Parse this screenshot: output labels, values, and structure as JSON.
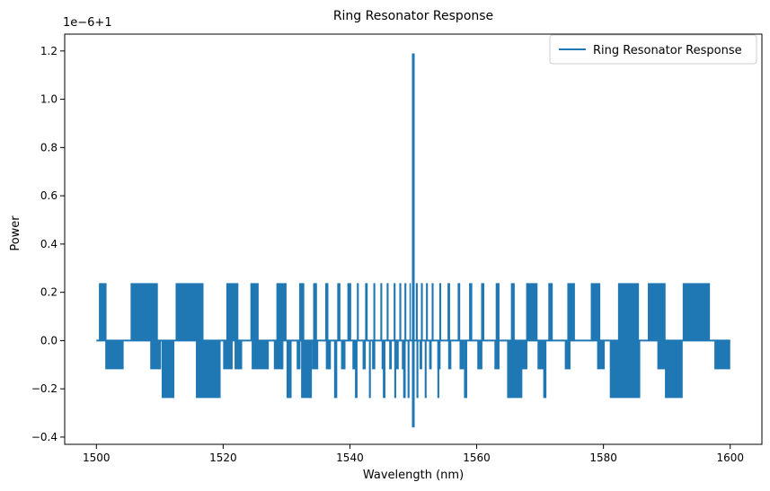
{
  "chart_data": {
    "type": "line",
    "title": "Ring Resonator Response",
    "xlabel": "Wavelength (nm)",
    "ylabel": "Power",
    "offset_label": "1e−6+1",
    "xlim": [
      1495,
      1605
    ],
    "ylim": [
      -0.43,
      1.27
    ],
    "y_scale_note": "y values shown are (Power - 1) × 1e6",
    "x_ticks": [
      1500,
      1520,
      1540,
      1560,
      1580,
      1600
    ],
    "x_tick_labels": [
      "1500",
      "1520",
      "1540",
      "1560",
      "1580",
      "1600"
    ],
    "y_ticks": [
      -0.4,
      -0.2,
      0.0,
      0.2,
      0.4,
      0.6,
      0.8,
      1.0,
      1.2
    ],
    "y_tick_labels": [
      "−0.4",
      "−0.2",
      "0.0",
      "0.2",
      "0.4",
      "0.6",
      "0.8",
      "1.0",
      "1.2"
    ],
    "grid": false,
    "legend": {
      "position": "top-right",
      "entries": [
        "Ring Resonator Response"
      ]
    },
    "series": [
      {
        "name": "Ring Resonator Response",
        "color": "#1f77b4",
        "levels": [
          -0.238,
          -0.119,
          0.0,
          0.238
        ],
        "high_bands": [
          [
            1500.4,
            1501.6
          ],
          [
            1505.4,
            1509.7
          ],
          [
            1512.5,
            1516.9
          ],
          [
            1520.5,
            1522.4
          ],
          [
            1524.3,
            1525.6
          ],
          [
            1528.4,
            1530.0
          ],
          [
            1532.0,
            1532.8
          ],
          [
            1534.2,
            1534.8
          ],
          [
            1536.1,
            1536.6
          ],
          [
            1538.0,
            1538.5
          ],
          [
            1539.6,
            1540.2
          ],
          [
            1541.1,
            1541.4
          ],
          [
            1542.4,
            1542.8
          ],
          [
            1543.7,
            1544.0
          ],
          [
            1544.8,
            1545.1
          ],
          [
            1545.8,
            1546.1
          ],
          [
            1546.9,
            1547.2
          ],
          [
            1547.8,
            1548.1
          ],
          [
            1548.6,
            1548.9
          ],
          [
            1549.4,
            1549.6
          ],
          [
            1550.4,
            1550.7
          ],
          [
            1551.2,
            1551.5
          ],
          [
            1552.0,
            1552.3
          ],
          [
            1552.9,
            1553.2
          ],
          [
            1554.1,
            1554.4
          ],
          [
            1555.4,
            1555.8
          ],
          [
            1557.0,
            1557.4
          ],
          [
            1558.8,
            1559.3
          ],
          [
            1560.7,
            1561.2
          ],
          [
            1563.0,
            1563.6
          ],
          [
            1565.4,
            1566.0
          ],
          [
            1567.8,
            1569.6
          ],
          [
            1571.3,
            1572.0
          ],
          [
            1574.3,
            1575.5
          ],
          [
            1578.0,
            1579.5
          ],
          [
            1582.3,
            1585.6
          ],
          [
            1587.0,
            1589.8
          ],
          [
            1592.5,
            1596.8
          ]
        ],
        "low1_bands": [
          [
            1501.4,
            1504.3
          ],
          [
            1508.5,
            1510.2
          ],
          [
            1520.0,
            1521.5
          ],
          [
            1521.8,
            1523.0
          ],
          [
            1524.5,
            1527.2
          ],
          [
            1528.0,
            1529.5
          ],
          [
            1531.6,
            1532.2
          ],
          [
            1534.0,
            1535.0
          ],
          [
            1536.2,
            1537.0
          ],
          [
            1538.6,
            1539.3
          ],
          [
            1540.4,
            1541.0
          ],
          [
            1542.0,
            1542.5
          ],
          [
            1543.5,
            1544.0
          ],
          [
            1545.0,
            1545.4
          ],
          [
            1546.2,
            1546.6
          ],
          [
            1547.3,
            1547.7
          ],
          [
            1548.2,
            1548.6
          ],
          [
            1551.0,
            1551.4
          ],
          [
            1552.5,
            1552.9
          ],
          [
            1553.8,
            1554.3
          ],
          [
            1555.5,
            1556.0
          ],
          [
            1557.3,
            1558.0
          ],
          [
            1560.1,
            1560.9
          ],
          [
            1562.8,
            1563.6
          ],
          [
            1567.0,
            1568.0
          ],
          [
            1569.6,
            1570.8
          ],
          [
            1573.9,
            1574.8
          ],
          [
            1579.0,
            1580.2
          ],
          [
            1588.5,
            1590.0
          ],
          [
            1597.5,
            1600.0
          ]
        ],
        "low2_bands": [
          [
            1510.3,
            1512.3
          ],
          [
            1515.7,
            1519.6
          ],
          [
            1530.0,
            1530.8
          ],
          [
            1532.3,
            1534.0
          ],
          [
            1537.5,
            1538.0
          ],
          [
            1540.8,
            1541.2
          ],
          [
            1543.0,
            1543.3
          ],
          [
            1545.2,
            1545.6
          ],
          [
            1547.0,
            1547.3
          ],
          [
            1548.4,
            1548.8
          ],
          [
            1549.1,
            1549.4
          ],
          [
            1550.5,
            1550.8
          ],
          [
            1551.8,
            1552.1
          ],
          [
            1553.8,
            1554.1
          ],
          [
            1558.0,
            1558.5
          ],
          [
            1564.8,
            1567.2
          ],
          [
            1570.5,
            1571.0
          ],
          [
            1581.0,
            1585.8
          ],
          [
            1589.7,
            1592.5
          ]
        ],
        "peak": {
          "x": 1550.0,
          "max": 1.19,
          "min": -0.36
        }
      }
    ]
  }
}
